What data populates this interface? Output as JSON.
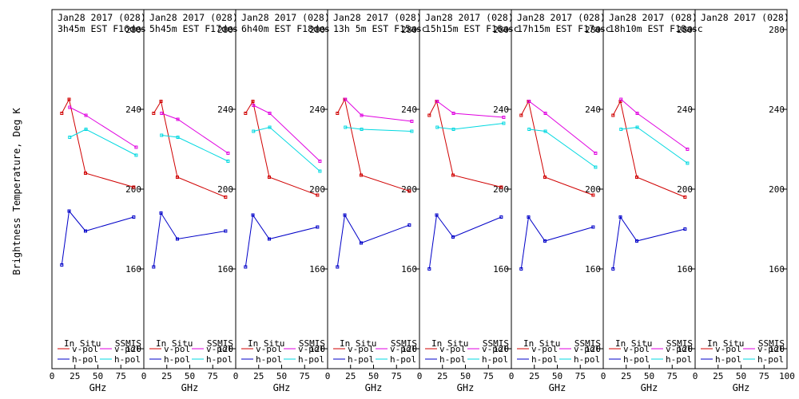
{
  "chart_data": {
    "type": "line",
    "ylabel": "Brightness Temperature, Deg K",
    "xlabel": "GHz",
    "ylim": [
      110,
      290
    ],
    "xlim": [
      0,
      100
    ],
    "yticks": [
      120,
      160,
      200,
      240,
      280
    ],
    "xticks": [
      0,
      25,
      50,
      75
    ],
    "xticks_last_panel": [
      0,
      25,
      50,
      75,
      100
    ],
    "legend": {
      "in_situ_header": "In Situ",
      "ssmis_header": "SSMIS",
      "entries": [
        {
          "label": "v-pol",
          "group": "in_situ",
          "color": "#d00000"
        },
        {
          "label": "h-pol",
          "group": "in_situ",
          "color": "#0000c8"
        },
        {
          "label": "v-pol",
          "group": "ssmis",
          "color": "#e000e0"
        },
        {
          "label": "h-pol",
          "group": "ssmis",
          "color": "#00d8e0"
        }
      ]
    },
    "panels": [
      {
        "title_line1": "Jan28 2017 (028)",
        "title_line2": "3h45m EST F16des",
        "series": [
          {
            "name": "v-pol",
            "group": "in_situ",
            "color": "#d00000",
            "x": [
              10.7,
              18.7,
              36.5,
              89.0
            ],
            "y": [
              238,
              245,
              208,
              201
            ]
          },
          {
            "name": "h-pol",
            "group": "in_situ",
            "color": "#0000c8",
            "x": [
              10.7,
              18.7,
              36.5,
              89.0
            ],
            "y": [
              162,
              189,
              179,
              186
            ]
          },
          {
            "name": "v-pol",
            "group": "ssmis",
            "color": "#e000e0",
            "x": [
              19.35,
              37.0,
              91.655
            ],
            "y": [
              241,
              237,
              221
            ]
          },
          {
            "name": "h-pol",
            "group": "ssmis",
            "color": "#00d8e0",
            "x": [
              19.35,
              37.0,
              91.655
            ],
            "y": [
              226,
              230,
              217
            ]
          }
        ]
      },
      {
        "title_line1": "Jan28 2017 (028)",
        "title_line2": "5h45m EST F17des",
        "series": [
          {
            "name": "v-pol",
            "group": "in_situ",
            "color": "#d00000",
            "x": [
              10.7,
              18.7,
              36.5,
              89.0
            ],
            "y": [
              238,
              244,
              206,
              196
            ]
          },
          {
            "name": "h-pol",
            "group": "in_situ",
            "color": "#0000c8",
            "x": [
              10.7,
              18.7,
              36.5,
              89.0
            ],
            "y": [
              161,
              188,
              175,
              179
            ]
          },
          {
            "name": "v-pol",
            "group": "ssmis",
            "color": "#e000e0",
            "x": [
              19.35,
              37.0,
              91.655
            ],
            "y": [
              238,
              235,
              218
            ]
          },
          {
            "name": "h-pol",
            "group": "ssmis",
            "color": "#00d8e0",
            "x": [
              19.35,
              37.0,
              91.655
            ],
            "y": [
              227,
              226,
              214
            ]
          }
        ]
      },
      {
        "title_line1": "Jan28 2017 (028)",
        "title_line2": "6h40m EST F18des",
        "series": [
          {
            "name": "v-pol",
            "group": "in_situ",
            "color": "#d00000",
            "x": [
              10.7,
              18.7,
              36.5,
              89.0
            ],
            "y": [
              238,
              244,
              206,
              197
            ]
          },
          {
            "name": "h-pol",
            "group": "in_situ",
            "color": "#0000c8",
            "x": [
              10.7,
              18.7,
              36.5,
              89.0
            ],
            "y": [
              161,
              187,
              175,
              181
            ]
          },
          {
            "name": "v-pol",
            "group": "ssmis",
            "color": "#e000e0",
            "x": [
              19.35,
              37.0,
              91.655
            ],
            "y": [
              242,
              238,
              214
            ]
          },
          {
            "name": "h-pol",
            "group": "ssmis",
            "color": "#00d8e0",
            "x": [
              19.35,
              37.0,
              91.655
            ],
            "y": [
              229,
              231,
              209
            ]
          }
        ]
      },
      {
        "title_line1": "Jan28 2017 (028)",
        "title_line2": "13h 5m EST F15asc",
        "series": [
          {
            "name": "v-pol",
            "group": "in_situ",
            "color": "#d00000",
            "x": [
              10.7,
              18.7,
              36.5,
              89.0
            ],
            "y": [
              238,
              245,
              207,
              199
            ]
          },
          {
            "name": "h-pol",
            "group": "in_situ",
            "color": "#0000c8",
            "x": [
              10.7,
              18.7,
              36.5,
              89.0
            ],
            "y": [
              161,
              187,
              173,
              182
            ]
          },
          {
            "name": "v-pol",
            "group": "ssmis",
            "color": "#e000e0",
            "x": [
              19.35,
              37.0,
              91.655
            ],
            "y": [
              245,
              237,
              234
            ]
          },
          {
            "name": "h-pol",
            "group": "ssmis",
            "color": "#00d8e0",
            "x": [
              19.35,
              37.0,
              91.655
            ],
            "y": [
              231,
              230,
              229
            ]
          }
        ]
      },
      {
        "title_line1": "Jan28 2017 (028)",
        "title_line2": "15h15m EST F16asc",
        "series": [
          {
            "name": "v-pol",
            "group": "in_situ",
            "color": "#d00000",
            "x": [
              10.7,
              18.7,
              36.5,
              89.0
            ],
            "y": [
              237,
              244,
              207,
              201
            ]
          },
          {
            "name": "h-pol",
            "group": "in_situ",
            "color": "#0000c8",
            "x": [
              10.7,
              18.7,
              36.5,
              89.0
            ],
            "y": [
              160,
              187,
              176,
              186
            ]
          },
          {
            "name": "v-pol",
            "group": "ssmis",
            "color": "#e000e0",
            "x": [
              19.35,
              37.0,
              91.655
            ],
            "y": [
              244,
              238,
              236
            ]
          },
          {
            "name": "h-pol",
            "group": "ssmis",
            "color": "#00d8e0",
            "x": [
              19.35,
              37.0,
              91.655
            ],
            "y": [
              231,
              230,
              233
            ]
          }
        ]
      },
      {
        "title_line1": "Jan28 2017 (028)",
        "title_line2": "17h15m EST F17asc",
        "series": [
          {
            "name": "v-pol",
            "group": "in_situ",
            "color": "#d00000",
            "x": [
              10.7,
              18.7,
              36.5,
              89.0
            ],
            "y": [
              237,
              244,
              206,
              197
            ]
          },
          {
            "name": "h-pol",
            "group": "in_situ",
            "color": "#0000c8",
            "x": [
              10.7,
              18.7,
              36.5,
              89.0
            ],
            "y": [
              160,
              186,
              174,
              181
            ]
          },
          {
            "name": "v-pol",
            "group": "ssmis",
            "color": "#e000e0",
            "x": [
              19.35,
              37.0,
              91.655
            ],
            "y": [
              244,
              238,
              218
            ]
          },
          {
            "name": "h-pol",
            "group": "ssmis",
            "color": "#00d8e0",
            "x": [
              19.35,
              37.0,
              91.655
            ],
            "y": [
              230,
              229,
              211
            ]
          }
        ]
      },
      {
        "title_line1": "Jan28 2017 (028)",
        "title_line2": "18h10m EST F18asc",
        "series": [
          {
            "name": "v-pol",
            "group": "in_situ",
            "color": "#d00000",
            "x": [
              10.7,
              18.7,
              36.5,
              89.0
            ],
            "y": [
              237,
              244,
              206,
              196
            ]
          },
          {
            "name": "h-pol",
            "group": "in_situ",
            "color": "#0000c8",
            "x": [
              10.7,
              18.7,
              36.5,
              89.0
            ],
            "y": [
              160,
              186,
              174,
              180
            ]
          },
          {
            "name": "v-pol",
            "group": "ssmis",
            "color": "#e000e0",
            "x": [
              19.35,
              37.0,
              91.655
            ],
            "y": [
              245,
              238,
              220
            ]
          },
          {
            "name": "h-pol",
            "group": "ssmis",
            "color": "#00d8e0",
            "x": [
              19.35,
              37.0,
              91.655
            ],
            "y": [
              230,
              231,
              213
            ]
          }
        ]
      },
      {
        "title_line1": "Jan28 2017 (028)",
        "title_line2": "",
        "series": []
      }
    ]
  }
}
